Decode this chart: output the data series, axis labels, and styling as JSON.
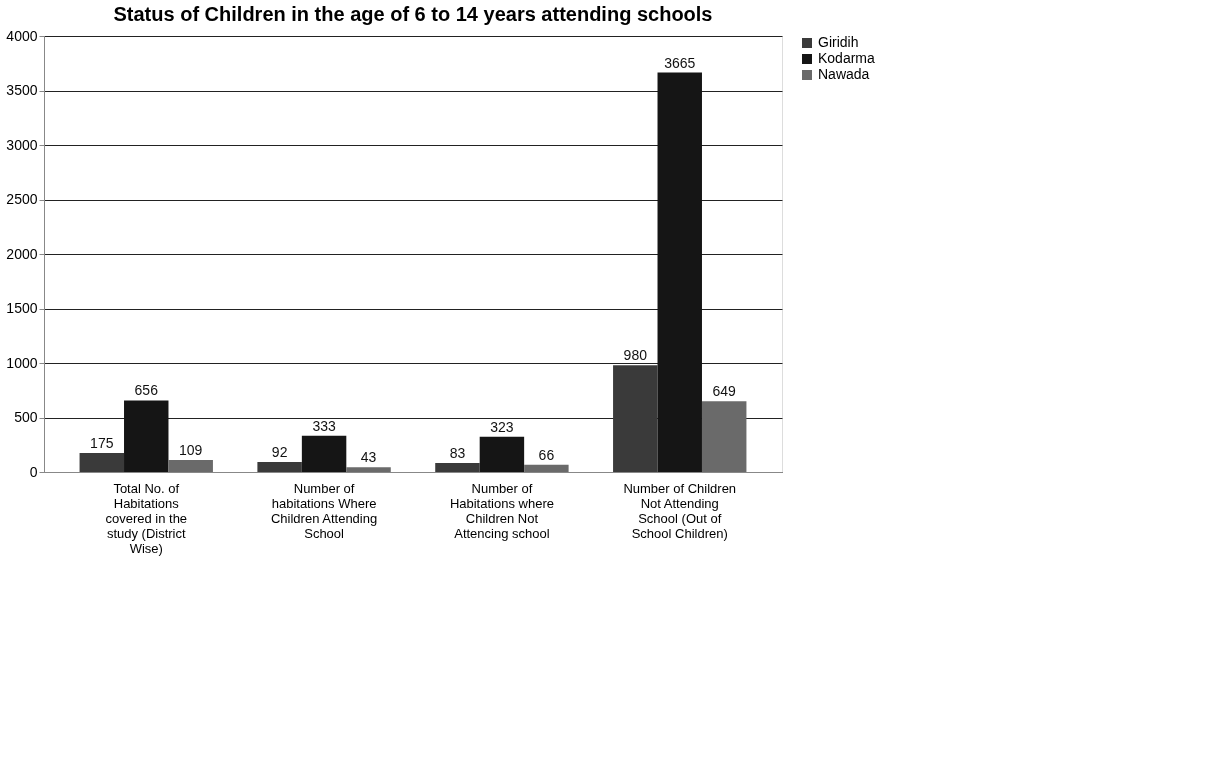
{
  "chart_data": {
    "type": "bar",
    "title": "Status of Children in the age of 6 to 14 years  attending schools",
    "categories": [
      "Total No. of Habitations covered in the study (District Wise)",
      "Number of habitations Where Children Attending School",
      "Number of Habitations where Children Not Attencing school",
      "Number of Children Not Attending School (Out of School Children)"
    ],
    "series": [
      {
        "name": "Giridih",
        "color": "#3a3a3a",
        "values": [
          175,
          92,
          83,
          980
        ]
      },
      {
        "name": "Kodarma",
        "color": "#151515",
        "values": [
          656,
          333,
          323,
          3665
        ]
      },
      {
        "name": "Nawada",
        "color": "#6a6a6a",
        "values": [
          109,
          43,
          66,
          649
        ]
      }
    ],
    "ylim": [
      0,
      4000
    ],
    "yticks": [
      0,
      500,
      1000,
      1500,
      2000,
      2500,
      3000,
      3500,
      4000
    ],
    "grid": "y",
    "legend": "right",
    "data_labels": true
  }
}
